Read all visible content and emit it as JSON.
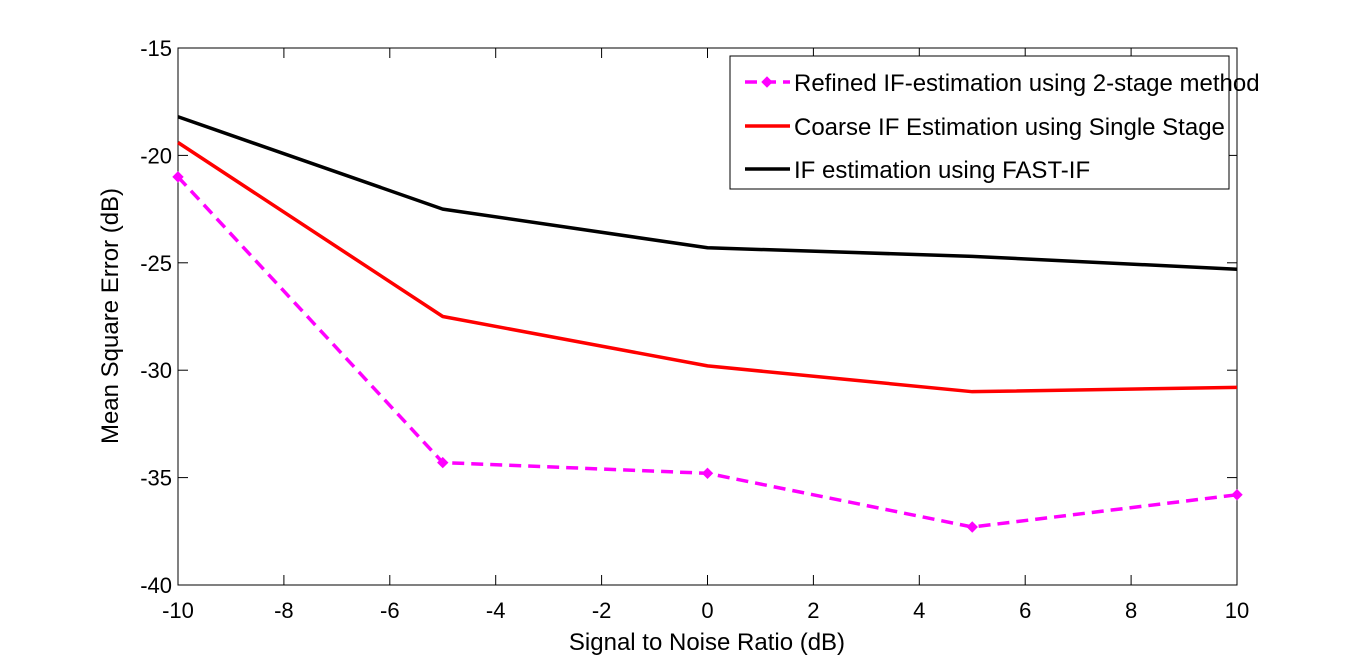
{
  "chart_data": {
    "type": "line",
    "xlabel": "Signal to Noise Ratio (dB)",
    "ylabel": "Mean Square Error (dB)",
    "xlim": [
      -10,
      10
    ],
    "ylim": [
      -40,
      -15
    ],
    "xticks": [
      -10,
      -8,
      -6,
      -4,
      -2,
      0,
      2,
      4,
      6,
      8,
      10
    ],
    "yticks": [
      -15,
      -20,
      -25,
      -30,
      -35,
      -40
    ],
    "x": [
      -10,
      -5,
      0,
      5,
      10
    ],
    "grid": false,
    "legend_position": "top-right",
    "series": [
      {
        "name": "Refined IF-estimation using 2-stage method",
        "values": [
          -21.0,
          -34.3,
          -34.8,
          -37.3,
          -35.8
        ],
        "color": "#ff00ff",
        "style": "dashed",
        "marker": "diamond"
      },
      {
        "name": "Coarse IF Estimation using Single Stage",
        "values": [
          -19.4,
          -27.5,
          -29.8,
          -31.0,
          -30.8
        ],
        "color": "#ff0000",
        "style": "solid",
        "marker": "none"
      },
      {
        "name": "IF estimation using FAST-IF",
        "values": [
          -18.2,
          -22.5,
          -24.3,
          -24.7,
          -25.3
        ],
        "color": "#000000",
        "style": "solid",
        "marker": "none"
      }
    ]
  }
}
